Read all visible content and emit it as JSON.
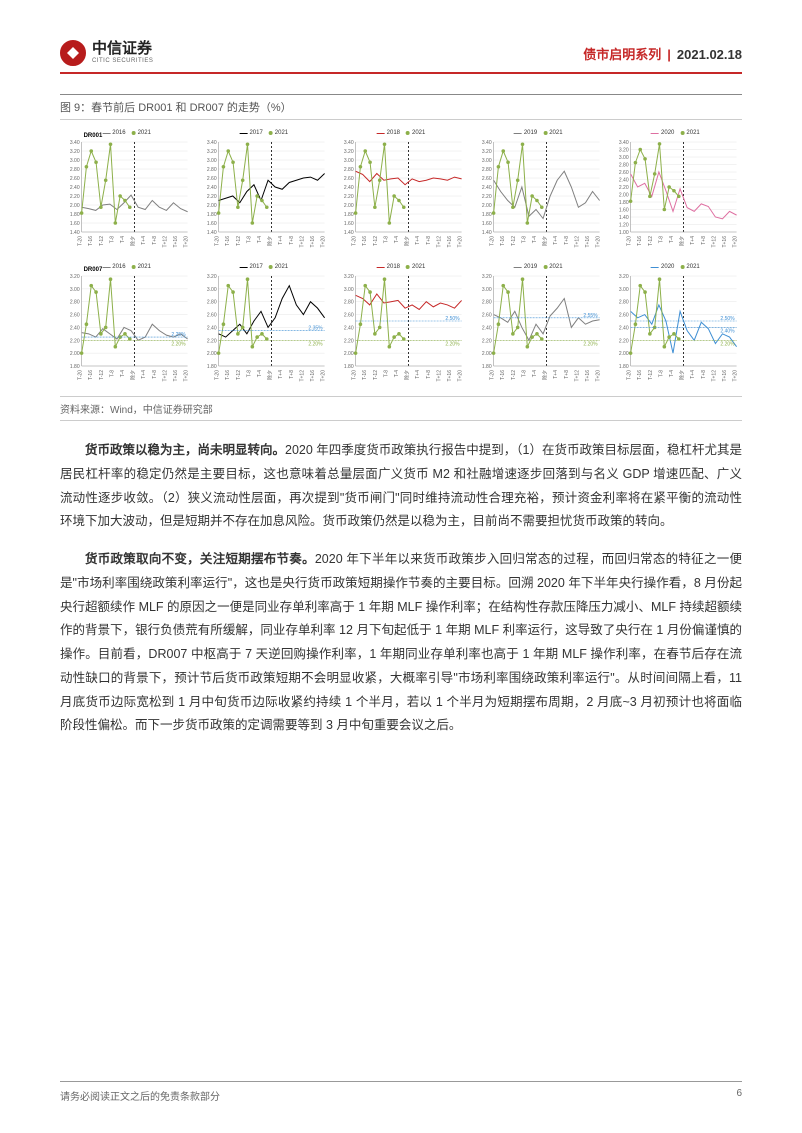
{
  "header": {
    "logo_cn": "中信证券",
    "logo_en": "CITIC SECURITIES",
    "series": "债市启明系列",
    "separator": "|",
    "date": "2021.02.18"
  },
  "figure": {
    "title": "图 9：春节前后 DR001 和 DR007 的走势（%）",
    "source": "资料来源：Wind，中信证券研究部",
    "x_ticks": [
      "T-20",
      "T-16",
      "T-12",
      "T-8",
      "T-4",
      "除夕",
      "T+4",
      "T+8",
      "T+12",
      "T+16",
      "T+20"
    ],
    "row1": {
      "label": "DR001",
      "label_color": "#000000",
      "charts": [
        {
          "hist_year": "2016",
          "hist_color": "#7f7f7f",
          "cur_year": "2021",
          "cur_color": "#8db04a",
          "y_min": 1.4,
          "y_max": 3.4,
          "y_step": 0.2,
          "hist_values": [
            1.95,
            1.92,
            1.88,
            2.0,
            2.02,
            1.9,
            2.05,
            2.22,
            1.95,
            1.9,
            2.1,
            1.95,
            1.88,
            2.05,
            1.92,
            1.85
          ],
          "cur_values": [
            1.82,
            2.85,
            3.2,
            2.95,
            1.95,
            2.55,
            3.35,
            1.6,
            2.2,
            2.1,
            1.95
          ],
          "hline": null
        },
        {
          "hist_year": "2017",
          "hist_color": "#000000",
          "cur_year": "2021",
          "cur_color": "#8db04a",
          "y_min": 1.4,
          "y_max": 3.4,
          "y_step": 0.2,
          "hist_values": [
            2.1,
            2.15,
            2.2,
            2.05,
            2.3,
            2.45,
            2.1,
            2.55,
            2.4,
            2.35,
            2.5,
            2.55,
            2.6,
            2.62,
            2.55,
            2.7
          ],
          "cur_values": [
            1.82,
            2.85,
            3.2,
            2.95,
            1.95,
            2.55,
            3.35,
            1.6,
            2.2,
            2.1,
            1.95
          ],
          "hline": null
        },
        {
          "hist_year": "2018",
          "hist_color": "#c62828",
          "cur_year": "2021",
          "cur_color": "#8db04a",
          "y_min": 1.4,
          "y_max": 3.4,
          "y_step": 0.2,
          "hist_values": [
            2.75,
            2.68,
            2.52,
            2.7,
            2.55,
            2.58,
            2.6,
            2.45,
            2.58,
            2.52,
            2.55,
            2.6,
            2.58,
            2.55,
            2.62,
            2.58
          ],
          "cur_values": [
            1.82,
            2.85,
            3.2,
            2.95,
            1.95,
            2.55,
            3.35,
            1.6,
            2.2,
            2.1,
            1.95
          ],
          "hline": null
        },
        {
          "hist_year": "2019",
          "hist_color": "#7f7f7f",
          "cur_year": "2021",
          "cur_color": "#8db04a",
          "y_min": 1.4,
          "y_max": 3.4,
          "y_step": 0.2,
          "hist_values": [
            2.55,
            2.3,
            2.1,
            1.95,
            2.4,
            1.75,
            1.9,
            1.7,
            2.2,
            2.55,
            2.75,
            2.4,
            1.95,
            2.05,
            2.3,
            2.1
          ],
          "cur_values": [
            1.82,
            2.85,
            3.2,
            2.95,
            1.95,
            2.55,
            3.35,
            1.6,
            2.2,
            2.1,
            1.95
          ],
          "hline": null
        },
        {
          "hist_year": "2020",
          "hist_color": "#de6fa1",
          "cur_year": "2021",
          "cur_color": "#8db04a",
          "y_min": 1.0,
          "y_max": 3.4,
          "y_step": 0.2,
          "hist_values": [
            2.55,
            2.2,
            2.3,
            1.95,
            2.6,
            2.1,
            1.55,
            2.15,
            1.65,
            1.55,
            1.75,
            1.68,
            1.4,
            1.35,
            1.55,
            1.45
          ],
          "cur_values": [
            1.82,
            2.85,
            3.2,
            2.95,
            1.95,
            2.55,
            3.35,
            1.6,
            2.2,
            2.1,
            1.95
          ],
          "hline": null
        }
      ]
    },
    "row2": {
      "label": "DR007",
      "label_color": "#000000",
      "charts": [
        {
          "hist_year": "2016",
          "hist_color": "#7f7f7f",
          "cur_year": "2021",
          "cur_color": "#8db04a",
          "y_min": 1.8,
          "y_max": 3.2,
          "y_step": 0.2,
          "hist_values": [
            2.32,
            2.3,
            2.25,
            2.38,
            2.3,
            2.22,
            2.4,
            2.35,
            2.2,
            2.25,
            2.45,
            2.35,
            2.28,
            2.25,
            2.3,
            2.22
          ],
          "cur_values": [
            2.0,
            2.45,
            3.05,
            2.95,
            2.3,
            2.4,
            3.15,
            2.1,
            2.25,
            2.3,
            2.22
          ],
          "hline": 2.25,
          "hline_label": "2.25%",
          "hline2": 2.2,
          "hline2_label": "2.20%",
          "hline_color": "#3f8fd4",
          "hline2_color": "#8db04a"
        },
        {
          "hist_year": "2017",
          "hist_color": "#000000",
          "cur_year": "2021",
          "cur_color": "#8db04a",
          "y_min": 1.8,
          "y_max": 3.2,
          "y_step": 0.2,
          "hist_values": [
            2.3,
            2.25,
            2.35,
            2.45,
            2.3,
            2.5,
            2.65,
            2.4,
            2.55,
            2.85,
            3.05,
            2.75,
            2.6,
            2.8,
            2.7,
            2.55
          ],
          "cur_values": [
            2.0,
            2.45,
            3.05,
            2.95,
            2.3,
            2.4,
            3.15,
            2.1,
            2.25,
            2.3,
            2.22
          ],
          "hline": 2.35,
          "hline_label": "2.35%",
          "hline2": 2.2,
          "hline2_label": "2.20%",
          "hline_color": "#3f8fd4",
          "hline2_color": "#8db04a"
        },
        {
          "hist_year": "2018",
          "hist_color": "#c62828",
          "cur_year": "2021",
          "cur_color": "#8db04a",
          "y_min": 1.8,
          "y_max": 3.2,
          "y_step": 0.2,
          "hist_values": [
            2.9,
            2.85,
            2.75,
            2.92,
            2.78,
            2.8,
            2.82,
            2.7,
            2.75,
            2.68,
            2.8,
            2.72,
            2.78,
            2.75,
            2.7,
            2.82
          ],
          "cur_values": [
            2.0,
            2.45,
            3.05,
            2.95,
            2.3,
            2.4,
            3.15,
            2.1,
            2.25,
            2.3,
            2.22
          ],
          "hline": 2.5,
          "hline_label": "2.50%",
          "hline2": 2.2,
          "hline2_label": "2.20%",
          "hline_color": "#3f8fd4",
          "hline2_color": "#8db04a"
        },
        {
          "hist_year": "2019",
          "hist_color": "#7f7f7f",
          "cur_year": "2021",
          "cur_color": "#8db04a",
          "y_min": 1.8,
          "y_max": 3.2,
          "y_step": 0.2,
          "hist_values": [
            2.6,
            2.55,
            2.48,
            2.65,
            2.4,
            2.2,
            2.45,
            2.3,
            2.58,
            2.7,
            2.85,
            2.4,
            2.55,
            2.45,
            2.5,
            2.52
          ],
          "cur_values": [
            2.0,
            2.45,
            3.05,
            2.95,
            2.3,
            2.4,
            3.15,
            2.1,
            2.25,
            2.3,
            2.22
          ],
          "hline": 2.55,
          "hline_label": "2.55%",
          "hline2": 2.2,
          "hline2_label": "2.20%",
          "hline_color": "#3f8fd4",
          "hline2_color": "#8db04a"
        },
        {
          "hist_year": "2020",
          "hist_color": "#3f8fd4",
          "cur_year": "2021",
          "cur_color": "#8db04a",
          "y_min": 1.8,
          "y_max": 3.2,
          "y_step": 0.2,
          "hist_values": [
            2.65,
            2.55,
            2.6,
            2.45,
            2.75,
            2.5,
            2.0,
            2.65,
            2.35,
            2.2,
            2.48,
            2.38,
            2.15,
            2.3,
            2.25,
            2.1
          ],
          "cur_values": [
            2.0,
            2.45,
            3.05,
            2.95,
            2.3,
            2.4,
            3.15,
            2.1,
            2.25,
            2.3,
            2.22
          ],
          "hline": 2.5,
          "hline_label": "2.50%",
          "hline2": 2.4,
          "hline2_label": "2.40%",
          "hline3": 2.2,
          "hline3_label": "2.20%",
          "hline_color": "#3f8fd4",
          "hline2_color": "#3f8fd4",
          "hline3_color": "#8db04a"
        }
      ]
    },
    "grid_color": "#e6e6e6",
    "axis_color": "#999999",
    "tick_fontsize": 5,
    "legend_fontsize": 6,
    "marker_radius": 1.8,
    "line_width": 1.0
  },
  "paragraphs": [
    {
      "lead": "货币政策以稳为主，尚未明显转向。",
      "text": "2020 年四季度货币政策执行报告中提到，（1）在货币政策目标层面，稳杠杆尤其是居民杠杆率的稳定仍然是主要目标，这也意味着总量层面广义货币 M2 和社融增速逐步回落到与名义 GDP 增速匹配、广义流动性逐步收敛。（2）狭义流动性层面，再次提到\"货币闸门\"同时维持流动性合理充裕，预计资金利率将在紧平衡的流动性环境下加大波动，但是短期并不存在加息风险。货币政策仍然是以稳为主，目前尚不需要担忧货币政策的转向。"
    },
    {
      "lead": "货币政策取向不变，关注短期摆布节奏。",
      "text": "2020 年下半年以来货币政策步入回归常态的过程，而回归常态的特征之一便是\"市场利率围绕政策利率运行\"，这也是央行货币政策短期操作节奏的主要目标。回溯 2020 年下半年央行操作看，8 月份起央行超额续作 MLF 的原因之一便是同业存单利率高于 1 年期 MLF 操作利率；在结构性存款压降压力减小、MLF 持续超额续作的背景下，银行负债荒有所缓解，同业存单利率 12 月下旬起低于 1 年期 MLF 利率运行，这导致了央行在 1 月份偏谨慎的操作。目前看，DR007 中枢高于 7 天逆回购操作利率，1 年期同业存单利率也高于 1 年期 MLF 操作利率，在春节后存在流动性缺口的背景下，预计节后货币政策短期不会明显收紧，大概率引导\"市场利率围绕政策利率运行\"。从时间间隔上看，11 月底货币边际宽松到 1 月中旬货币边际收紧约持续 1 个半月，若以 1 个半月为短期摆布周期，2 月底~3 月初预计也将面临阶段性偏松。而下一步货币政策的定调需要等到 3 月中旬重要会议之后。"
    }
  ],
  "footer": {
    "disclaimer": "请务必阅读正文之后的免责条款部分",
    "page": "6"
  }
}
